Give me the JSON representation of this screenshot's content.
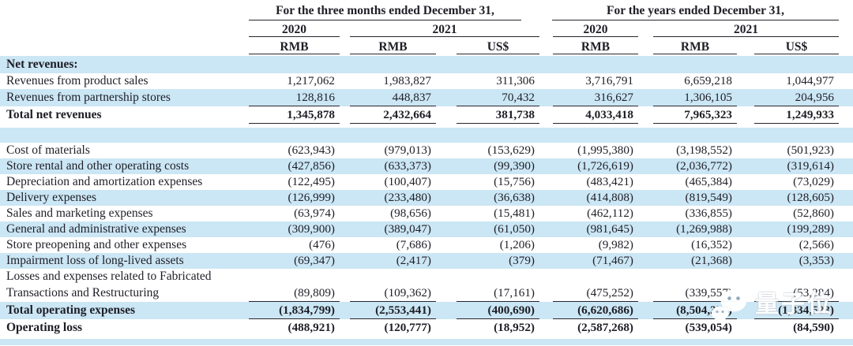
{
  "header": {
    "groups": [
      {
        "title": "For the three months ended December 31,"
      },
      {
        "title": "For the years ended December 31,"
      }
    ],
    "years": [
      "2020",
      "2021",
      "2020",
      "2021"
    ],
    "currencies": [
      "RMB",
      "RMB",
      "US$",
      "RMB",
      "RMB",
      "US$"
    ]
  },
  "rows": [
    {
      "type": "section",
      "bg": "blue",
      "bold": true,
      "label": "Net revenues:",
      "values": []
    },
    {
      "type": "data",
      "bg": "white",
      "label": "Revenues from product sales",
      "values": [
        "1,217,062",
        "1,983,827",
        "311,306",
        "3,716,791",
        "6,659,218",
        "1,044,977"
      ]
    },
    {
      "type": "data",
      "bg": "blue",
      "underline": true,
      "label": "Revenues from partnership stores",
      "values": [
        "128,816",
        "448,837",
        "70,432",
        "316,627",
        "1,306,105",
        "204,956"
      ]
    },
    {
      "type": "data",
      "bg": "white",
      "bold": true,
      "underline": true,
      "label": "Total net revenues",
      "values": [
        "1,345,878",
        "2,432,664",
        "381,738",
        "4,033,418",
        "7,965,323",
        "1,249,933"
      ]
    },
    {
      "type": "spacer",
      "bg": "white",
      "height": 5
    },
    {
      "type": "spacer",
      "bg": "blue",
      "height": 19
    },
    {
      "type": "data",
      "bg": "white",
      "label": "Cost of materials",
      "values": [
        "(623,943)",
        "(979,013)",
        "(153,629)",
        "(1,995,380)",
        "(3,198,552)",
        "(501,923)"
      ]
    },
    {
      "type": "data",
      "bg": "blue",
      "label": "Store rental and other operating costs",
      "values": [
        "(427,856)",
        "(633,373)",
        "(99,390)",
        "(1,726,619)",
        "(2,036,772)",
        "(319,614)"
      ]
    },
    {
      "type": "data",
      "bg": "white",
      "label": "Depreciation and amortization expenses",
      "values": [
        "(122,495)",
        "(100,407)",
        "(15,756)",
        "(483,421)",
        "(465,384)",
        "(73,029)"
      ]
    },
    {
      "type": "data",
      "bg": "blue",
      "label": "Delivery expenses",
      "values": [
        "(126,999)",
        "(233,480)",
        "(36,638)",
        "(414,808)",
        "(819,549)",
        "(128,605)"
      ]
    },
    {
      "type": "data",
      "bg": "white",
      "label": "Sales and marketing expenses",
      "values": [
        "(63,974)",
        "(98,656)",
        "(15,481)",
        "(462,112)",
        "(336,855)",
        "(52,860)"
      ]
    },
    {
      "type": "data",
      "bg": "blue",
      "label": "General and administrative expenses",
      "values": [
        "(309,900)",
        "(389,047)",
        "(61,050)",
        "(981,645)",
        "(1,269,988)",
        "(199,289)"
      ]
    },
    {
      "type": "data",
      "bg": "white",
      "label": "Store preopening and other expenses",
      "values": [
        "(476)",
        "(7,686)",
        "(1,206)",
        "(9,982)",
        "(16,352)",
        "(2,566)"
      ]
    },
    {
      "type": "data",
      "bg": "blue",
      "label": "Impairment loss of long-lived assets",
      "values": [
        "(69,347)",
        "(2,417)",
        "(379)",
        "(71,467)",
        "(21,368)",
        "(3,353)"
      ]
    },
    {
      "type": "data",
      "bg": "white",
      "label": "Losses and expenses related to Fabricated",
      "values": []
    },
    {
      "type": "data",
      "bg": "white",
      "underline": true,
      "label": "Transactions and Restructuring",
      "values": [
        "(89,809)",
        "(109,362)",
        "(17,161)",
        "(475,252)",
        "(339,557)",
        "(53,284)"
      ]
    },
    {
      "type": "data",
      "bg": "blue",
      "bold": true,
      "underline": true,
      "label": "Total operating expenses",
      "values": [
        "(1,834,799)",
        "(2,553,441)",
        "(400,690)",
        "(6,620,686)",
        "(8,504,377)",
        "(1,334,523)"
      ]
    },
    {
      "type": "data",
      "bg": "white",
      "bold": true,
      "label": "Operating loss",
      "values": [
        "(488,921)",
        "(120,777)",
        "(18,952)",
        "(2,587,268)",
        "(539,054)",
        "(84,590)"
      ]
    },
    {
      "type": "spacer",
      "bg": "white",
      "height": 3
    },
    {
      "type": "spacer",
      "bg": "blue",
      "height": 8
    }
  ],
  "watermark": {
    "text": "量子位",
    "icon": "wechat-icon"
  },
  "colors": {
    "row_highlight": "#cbe6f4",
    "text": "#1e1e26",
    "rule": "#26262e"
  }
}
